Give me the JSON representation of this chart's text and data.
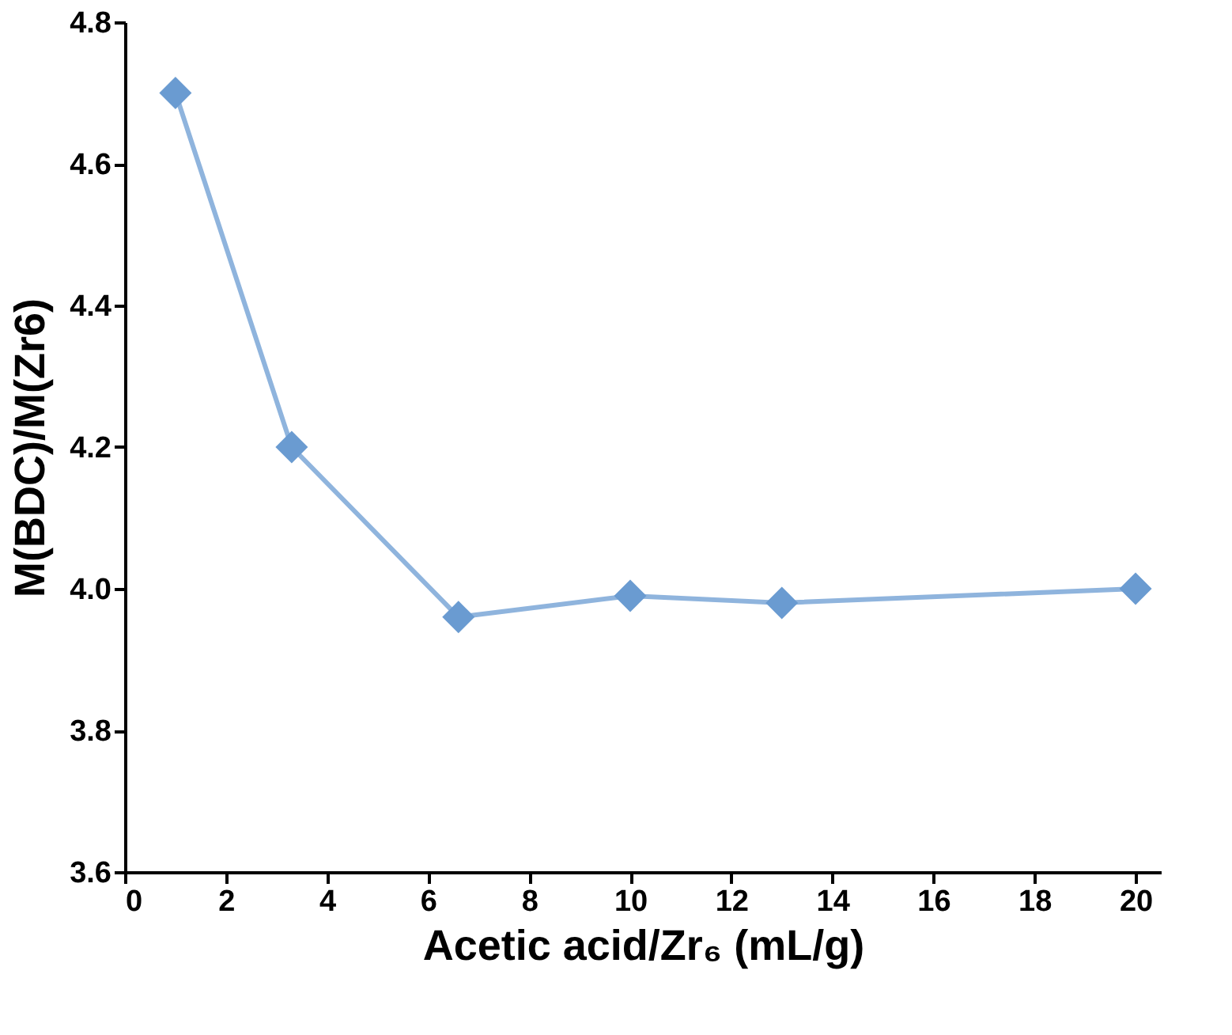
{
  "chart_data": {
    "type": "line",
    "xlabel": "Acetic acid/Zr₆ (mL/g)",
    "ylabel": "M(BDC)/M(Zr6)",
    "x": [
      1,
      3.3,
      6.6,
      10,
      13,
      20
    ],
    "series": [
      {
        "color": "#6a9bd1",
        "values": [
          4.7,
          4.2,
          3.96,
          3.99,
          3.98,
          4.0
        ]
      }
    ],
    "xlim": [
      0,
      20.5
    ],
    "xticks": [
      0,
      2,
      4,
      6,
      8,
      10,
      12,
      14,
      16,
      18,
      20
    ],
    "ylim": [
      3.6,
      4.8
    ],
    "yticks": [
      {
        "value": 3.6,
        "label": "3.6"
      },
      {
        "value": 3.8,
        "label": "3.8"
      },
      {
        "value": 4.0,
        "label": "4.0"
      },
      {
        "value": 4.2,
        "label": "4.2"
      },
      {
        "value": 4.4,
        "label": "4.4"
      },
      {
        "value": 4.6,
        "label": "4.6"
      },
      {
        "value": 4.8,
        "label": "4.8"
      }
    ],
    "marker": "diamond",
    "line_style": "solid",
    "grid": false
  }
}
